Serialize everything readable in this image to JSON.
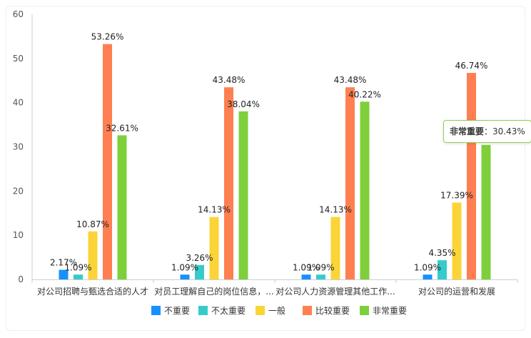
{
  "chart_data": {
    "type": "bar",
    "categories": [
      "对公司招聘与甄选合适的人才",
      "对员工理解自己的岗位信息，...",
      "对公司人力资源管理其他工作...",
      "对公司的运营和发展"
    ],
    "series": [
      {
        "name": "不重要",
        "color": "#1890ff",
        "values": [
          2.17,
          1.09,
          1.09,
          1.09
        ]
      },
      {
        "name": "不太重要",
        "color": "#36cbcb",
        "values": [
          1.09,
          3.26,
          1.09,
          4.35
        ]
      },
      {
        "name": "一般",
        "color": "#fbd437",
        "values": [
          10.87,
          14.13,
          14.13,
          17.39
        ]
      },
      {
        "name": "比较重要",
        "color": "#ff7f50",
        "values": [
          53.26,
          43.48,
          43.48,
          46.74
        ]
      },
      {
        "name": "非常重要",
        "color": "#7ed03b",
        "values": [
          32.61,
          38.04,
          40.22,
          30.43
        ]
      }
    ],
    "ylim": [
      0,
      60
    ],
    "yticks": [
      0,
      10,
      20,
      30,
      40,
      50,
      60
    ],
    "value_suffix": "%",
    "grid": false,
    "legend": "bottom",
    "tooltip": {
      "name": "非常重要",
      "value": "30.43%"
    }
  }
}
